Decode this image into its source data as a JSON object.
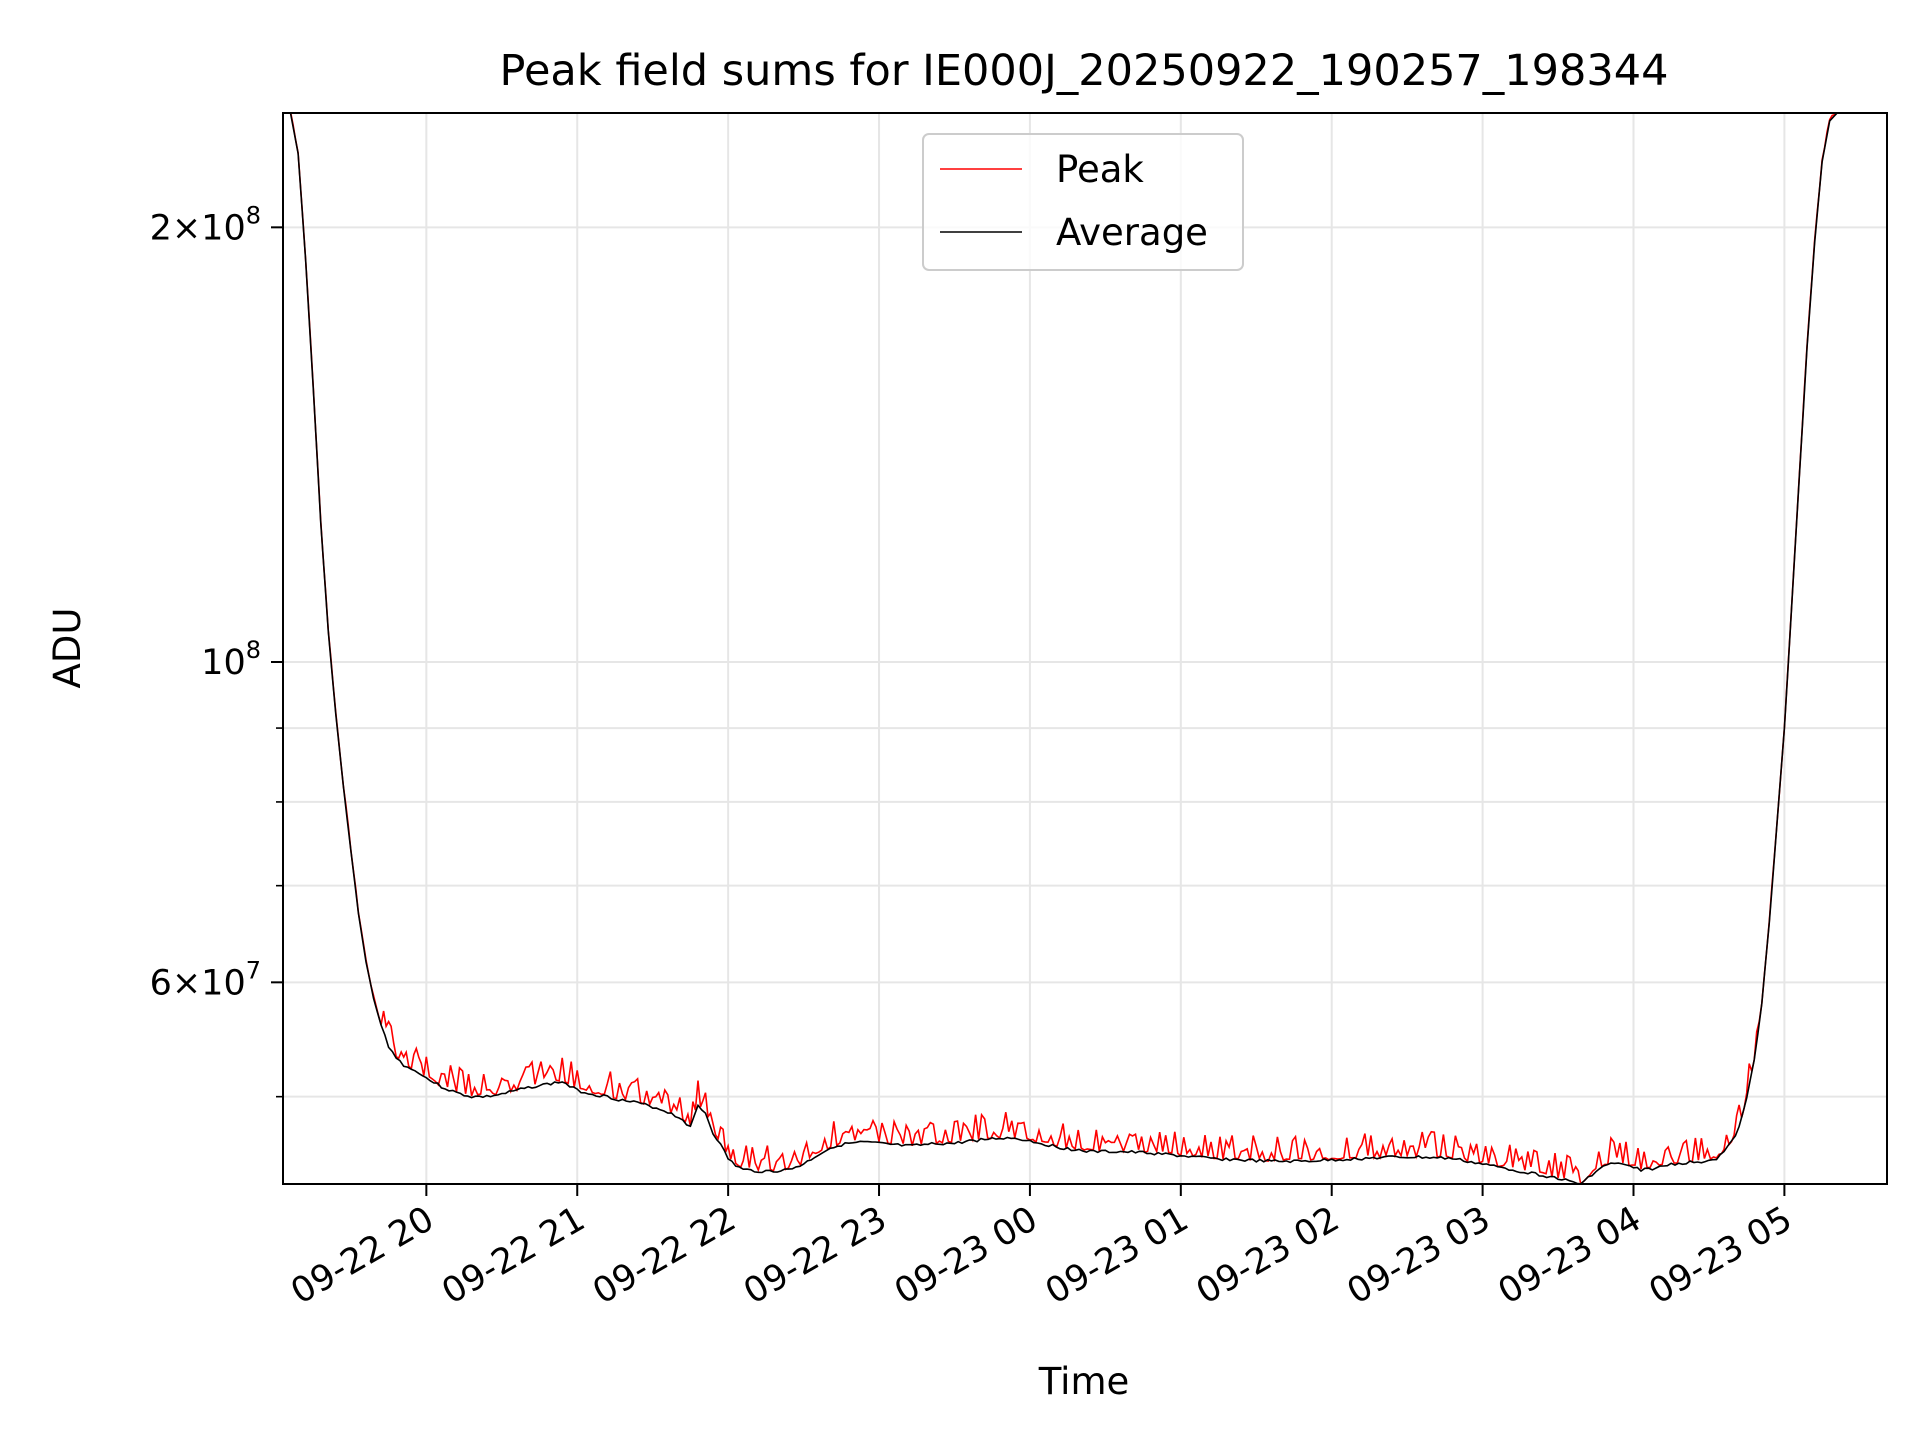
{
  "chart_data": {
    "type": "line",
    "title": "Peak field sums for IE000J_20250922_190257_198344",
    "xlabel": "Time",
    "ylabel": "ADU",
    "yscale": "log",
    "ylim": [
      43500000,
      240000000
    ],
    "xlim_hours": [
      19.05,
      5.68
    ],
    "grid": true,
    "legend_position": "top-center",
    "x_ticks": [
      {
        "label": "09-22 20",
        "hour": 20
      },
      {
        "label": "09-22 21",
        "hour": 21
      },
      {
        "label": "09-22 22",
        "hour": 22
      },
      {
        "label": "09-22 23",
        "hour": 23
      },
      {
        "label": "09-23 00",
        "hour": 24
      },
      {
        "label": "09-23 01",
        "hour": 25
      },
      {
        "label": "09-23 02",
        "hour": 26
      },
      {
        "label": "09-23 03",
        "hour": 27
      },
      {
        "label": "09-23 04",
        "hour": 28
      },
      {
        "label": "09-23 05",
        "hour": 29
      }
    ],
    "y_major_ticks": [
      {
        "base": "2×10",
        "exp": "8",
        "value": 200000000
      },
      {
        "base": "10",
        "exp": "8",
        "value": 100000000
      },
      {
        "base": "6×10",
        "exp": "7",
        "value": 60000000
      }
    ],
    "y_minor_ticks": [
      50000000,
      70000000,
      80000000,
      90000000
    ],
    "series": [
      {
        "name": "Average",
        "color": "#000000",
        "points": [
          [
            19.1,
            240000000
          ],
          [
            19.15,
            225000000
          ],
          [
            19.2,
            190000000
          ],
          [
            19.25,
            155000000
          ],
          [
            19.3,
            125000000
          ],
          [
            19.35,
            105000000
          ],
          [
            19.4,
            92000000
          ],
          [
            19.45,
            82000000
          ],
          [
            19.5,
            74000000
          ],
          [
            19.55,
            67000000
          ],
          [
            19.6,
            62000000
          ],
          [
            19.65,
            58500000
          ],
          [
            19.7,
            56000000
          ],
          [
            19.75,
            54200000
          ],
          [
            19.8,
            53200000
          ],
          [
            19.85,
            52600000
          ],
          [
            19.9,
            52200000
          ],
          [
            19.95,
            52000000
          ],
          [
            20.0,
            51500000
          ],
          [
            20.1,
            50800000
          ],
          [
            20.2,
            50300000
          ],
          [
            20.3,
            50000000
          ],
          [
            20.4,
            50000000
          ],
          [
            20.5,
            50200000
          ],
          [
            20.6,
            50500000
          ],
          [
            20.7,
            50800000
          ],
          [
            20.8,
            51000000
          ],
          [
            20.9,
            51200000
          ],
          [
            21.0,
            50500000
          ],
          [
            21.1,
            50200000
          ],
          [
            21.2,
            50000000
          ],
          [
            21.3,
            49700000
          ],
          [
            21.4,
            49500000
          ],
          [
            21.5,
            49200000
          ],
          [
            21.6,
            48800000
          ],
          [
            21.7,
            48200000
          ],
          [
            21.75,
            47600000
          ],
          [
            21.8,
            49300000
          ],
          [
            21.85,
            48700000
          ],
          [
            21.9,
            47200000
          ],
          [
            21.95,
            46300000
          ],
          [
            22.0,
            45300000
          ],
          [
            22.05,
            44800000
          ],
          [
            22.1,
            44500000
          ],
          [
            22.2,
            44400000
          ],
          [
            22.3,
            44400000
          ],
          [
            22.4,
            44500000
          ],
          [
            22.5,
            44900000
          ],
          [
            22.6,
            45600000
          ],
          [
            22.7,
            46200000
          ],
          [
            22.8,
            46400000
          ],
          [
            22.9,
            46500000
          ],
          [
            23.0,
            46400000
          ],
          [
            23.1,
            46300000
          ],
          [
            23.2,
            46200000
          ],
          [
            23.3,
            46300000
          ],
          [
            23.4,
            46400000
          ],
          [
            23.5,
            46400000
          ],
          [
            23.6,
            46600000
          ],
          [
            23.7,
            46700000
          ],
          [
            23.8,
            46800000
          ],
          [
            23.9,
            46800000
          ],
          [
            24.0,
            46600000
          ],
          [
            24.2,
            46100000
          ],
          [
            24.4,
            45800000
          ],
          [
            24.6,
            45800000
          ],
          [
            24.8,
            45700000
          ],
          [
            25.0,
            45500000
          ],
          [
            25.2,
            45300000
          ],
          [
            25.4,
            45200000
          ],
          [
            25.6,
            45100000
          ],
          [
            25.8,
            45100000
          ],
          [
            26.0,
            45200000
          ],
          [
            26.2,
            45300000
          ],
          [
            26.4,
            45400000
          ],
          [
            26.6,
            45400000
          ],
          [
            26.8,
            45300000
          ],
          [
            27.0,
            44900000
          ],
          [
            27.2,
            44500000
          ],
          [
            27.4,
            44100000
          ],
          [
            27.5,
            43900000
          ],
          [
            27.6,
            43600000
          ],
          [
            27.65,
            43500000
          ],
          [
            27.75,
            44400000
          ],
          [
            27.85,
            45000000
          ],
          [
            27.95,
            44800000
          ],
          [
            28.05,
            44500000
          ],
          [
            28.15,
            44600000
          ],
          [
            28.25,
            44900000
          ],
          [
            28.35,
            45000000
          ],
          [
            28.45,
            45100000
          ],
          [
            28.55,
            45300000
          ],
          [
            28.6,
            45800000
          ],
          [
            28.65,
            46500000
          ],
          [
            28.7,
            47600000
          ],
          [
            28.75,
            49800000
          ],
          [
            28.8,
            53000000
          ],
          [
            28.85,
            58000000
          ],
          [
            28.9,
            66000000
          ],
          [
            28.95,
            77000000
          ],
          [
            29.0,
            90000000
          ],
          [
            29.05,
            110000000
          ],
          [
            29.1,
            135000000
          ],
          [
            29.15,
            165000000
          ],
          [
            29.2,
            195000000
          ],
          [
            29.25,
            222000000
          ],
          [
            29.3,
            237000000
          ],
          [
            29.35,
            240000000
          ]
        ]
      },
      {
        "name": "Peak",
        "color": "#ff0000",
        "points": []
      }
    ]
  }
}
